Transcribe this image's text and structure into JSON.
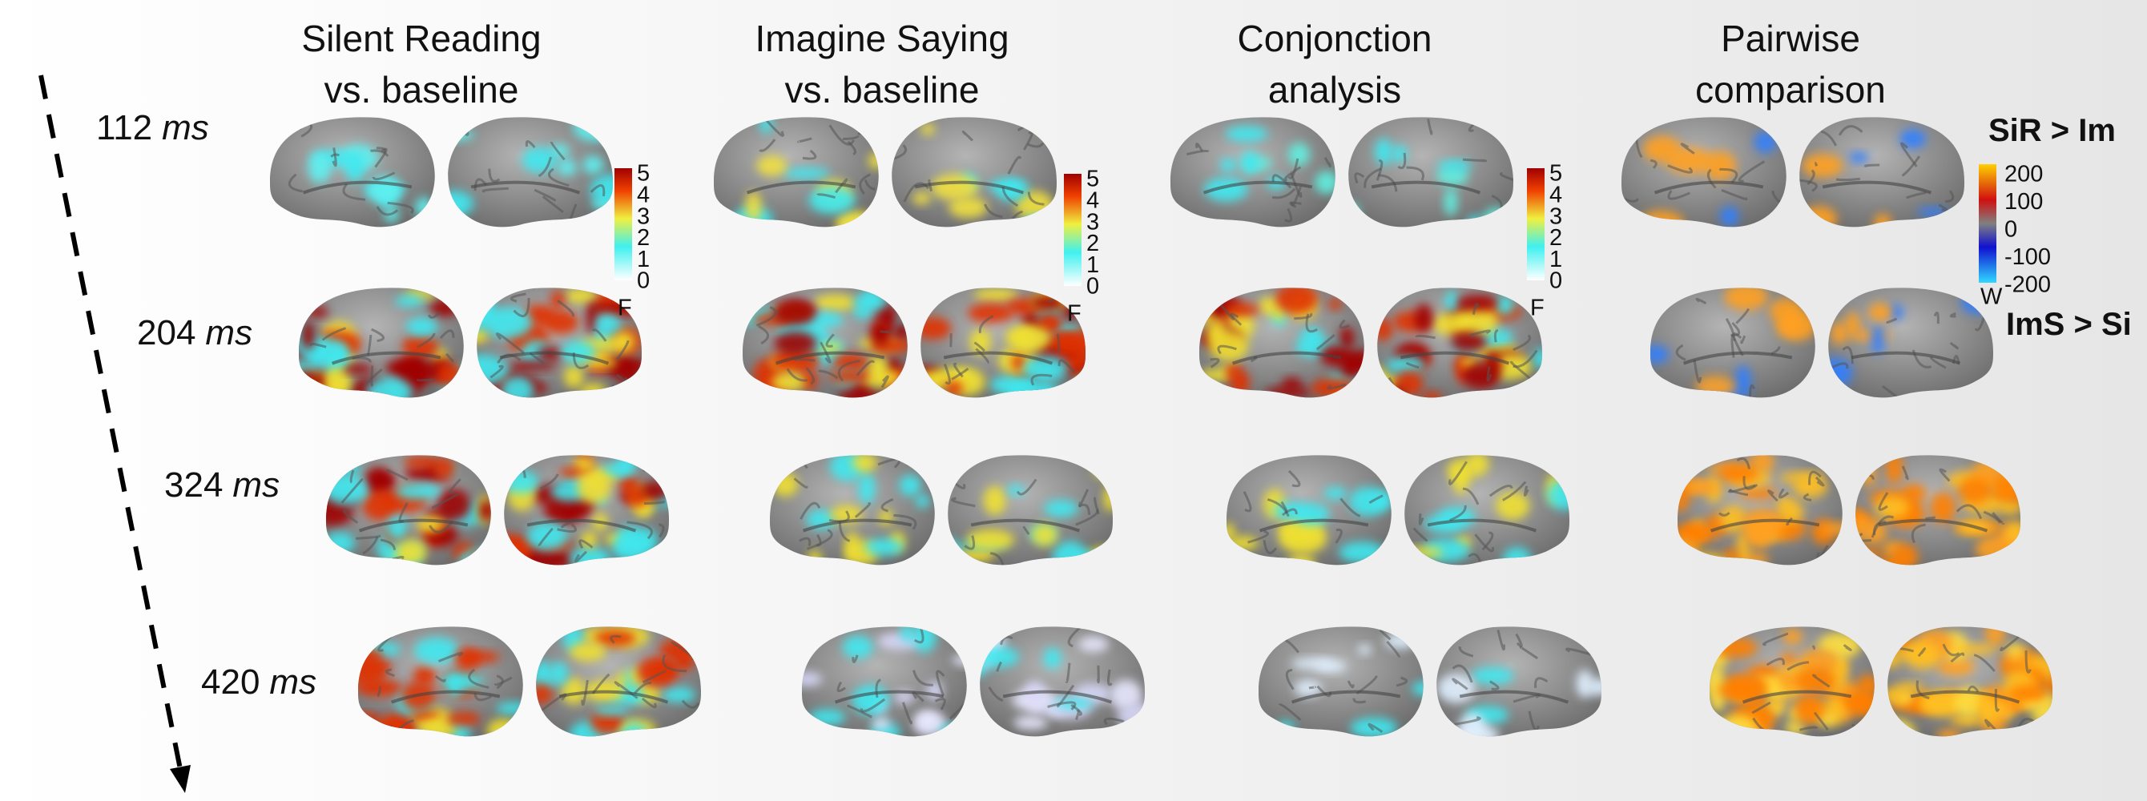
{
  "columns": [
    {
      "lines": [
        "Silent Reading",
        "vs. baseline"
      ]
    },
    {
      "lines": [
        "Imagine Saying",
        "vs. baseline"
      ]
    },
    {
      "lines": [
        "Conjonction",
        "analysis"
      ]
    },
    {
      "lines": [
        "Pairwise",
        "comparison"
      ]
    }
  ],
  "rows": [
    {
      "time": "112",
      "unit": "ms"
    },
    {
      "time": "204",
      "unit": "ms"
    },
    {
      "time": "324",
      "unit": "ms"
    },
    {
      "time": "420",
      "unit": "ms"
    }
  ],
  "colorbars": [
    {
      "ticks": [
        "5",
        "4",
        "3",
        "2",
        "1",
        "0"
      ],
      "label": "F"
    },
    {
      "ticks": [
        "5",
        "4",
        "3",
        "2",
        "1",
        "0"
      ],
      "label": "F"
    },
    {
      "ticks": [
        "5",
        "4",
        "3",
        "2",
        "1",
        "0"
      ],
      "label": "F"
    }
  ],
  "pairwise_colorbar": {
    "ticks": [
      "200",
      "100",
      "0",
      "-100",
      "-200"
    ],
    "label": "W",
    "top_label": "SiR > Im",
    "bottom_label": "ImS > Si"
  }
}
